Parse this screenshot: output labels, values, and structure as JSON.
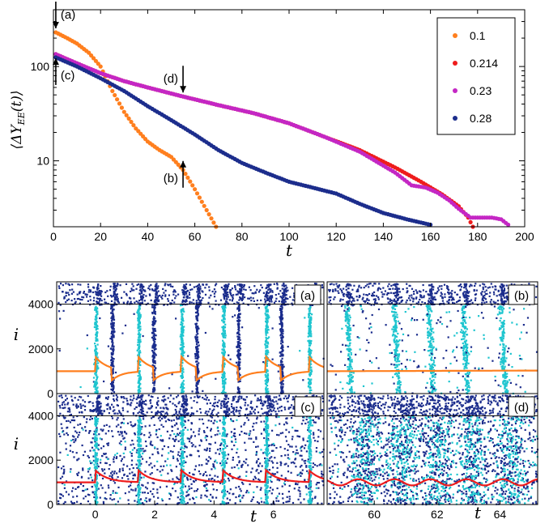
{
  "chart_data": [
    {
      "type": "scatter",
      "panel": "top",
      "xlabel": "t",
      "ylabel": "⟨ΔY_EE(t)⟩",
      "xlim": [
        0,
        200
      ],
      "ylim": [
        2,
        400
      ],
      "yscale": "log",
      "xticks": [
        "0",
        "20",
        "40",
        "60",
        "80",
        "100",
        "120",
        "140",
        "160",
        "180",
        "200"
      ],
      "yticks": [
        {
          "value": 10,
          "label": "10"
        },
        {
          "value": 100,
          "label": "100"
        }
      ],
      "legend": {
        "placement": "top-right",
        "entries": [
          {
            "name": "0.1",
            "color": "#ff7f1e"
          },
          {
            "name": "0.214",
            "color": "#ee1c1c"
          },
          {
            "name": "0.23",
            "color": "#c427c4"
          },
          {
            "name": "0.28",
            "color": "#1c2d8c"
          }
        ]
      },
      "series": [
        {
          "name": "0.1",
          "color": "#ff7f1e",
          "x": [
            1,
            5,
            10,
            15,
            20,
            25,
            30,
            35,
            40,
            45,
            50,
            55,
            60,
            65,
            69
          ],
          "y": [
            230,
            205,
            175,
            140,
            100,
            55,
            33,
            22,
            16,
            13,
            11,
            8,
            5,
            3,
            2
          ]
        },
        {
          "name": "0.214",
          "color": "#ee1c1c",
          "x": [
            1,
            10,
            20,
            30,
            40,
            55,
            70,
            85,
            100,
            115,
            130,
            145,
            155,
            165,
            172,
            176,
            178
          ],
          "y": [
            135,
            108,
            85,
            70,
            60,
            48,
            39,
            32,
            25,
            18,
            13,
            8.5,
            6.2,
            4.4,
            3.3,
            2.5,
            2
          ]
        },
        {
          "name": "0.23",
          "color": "#c427c4",
          "x": [
            1,
            10,
            20,
            30,
            40,
            55,
            70,
            85,
            100,
            115,
            130,
            145,
            152,
            158,
            163,
            168,
            172,
            177,
            181,
            186,
            190,
            193
          ],
          "y": [
            135,
            108,
            85,
            70,
            60,
            48,
            39,
            32,
            25,
            18,
            12.5,
            7.5,
            5.5,
            5.2,
            4.6,
            3.8,
            3.1,
            2.5,
            2.5,
            2.5,
            2.4,
            2.1
          ]
        },
        {
          "name": "0.28",
          "color": "#1c2d8c",
          "x": [
            1,
            10,
            20,
            30,
            40,
            50,
            60,
            70,
            80,
            90,
            100,
            110,
            120,
            130,
            140,
            150,
            160
          ],
          "y": [
            125,
            100,
            75,
            55,
            38,
            27,
            19,
            13,
            9.5,
            7.5,
            6,
            5.2,
            4.5,
            3.5,
            2.8,
            2.4,
            2.1
          ]
        }
      ],
      "annotations": [
        {
          "label": "(a)",
          "x": 1,
          "y": 230,
          "arrow": "down"
        },
        {
          "label": "(c)",
          "x": 1,
          "y": 135,
          "arrow": "up"
        },
        {
          "label": "(d)",
          "x": 55,
          "y": 48,
          "arrow": "down"
        },
        {
          "label": "(b)",
          "x": 55,
          "y": 11,
          "arrow": "up"
        }
      ]
    },
    {
      "type": "scatter",
      "panel": "raster",
      "ylabel": "i",
      "xlabel": "t",
      "ylim": [
        0,
        5000
      ],
      "yticks": [
        "0",
        "2000",
        "4000"
      ],
      "subpanels": [
        {
          "label": "(a)",
          "xlim": [
            -1.3,
            7.7
          ],
          "burst_times": [
            0,
            0.55,
            1.45,
            1.95,
            2.9,
            3.4,
            4.3,
            4.8,
            5.75,
            6.25,
            7.2
          ],
          "trace_color": "#ff7f1e",
          "trace_type": "sawtooth"
        },
        {
          "label": "(b)",
          "xlim": [
            58.5,
            65.2
          ],
          "burst_times": [
            59.1,
            60.6,
            61.7,
            62.8,
            64.0
          ],
          "trace_color": "#ff7f1e",
          "trace_type": "flat"
        },
        {
          "label": "(c)",
          "xticks": [
            "0",
            "2",
            "4",
            "6"
          ],
          "xlim": [
            -1.3,
            7.7
          ],
          "burst_times": [
            0,
            1.45,
            2.9,
            4.3,
            5.75,
            7.2
          ],
          "trace_color": "#ee1c1c",
          "trace_type": "sawtooth"
        },
        {
          "label": "(d)",
          "xticks": [
            "60",
            "62",
            "64"
          ],
          "xlim": [
            58.5,
            65.2
          ],
          "burst_times": [
            59.7,
            60.9,
            62.0,
            63.1,
            64.3
          ],
          "trace_color": "#ee1c1c",
          "trace_type": "wave"
        }
      ]
    }
  ]
}
